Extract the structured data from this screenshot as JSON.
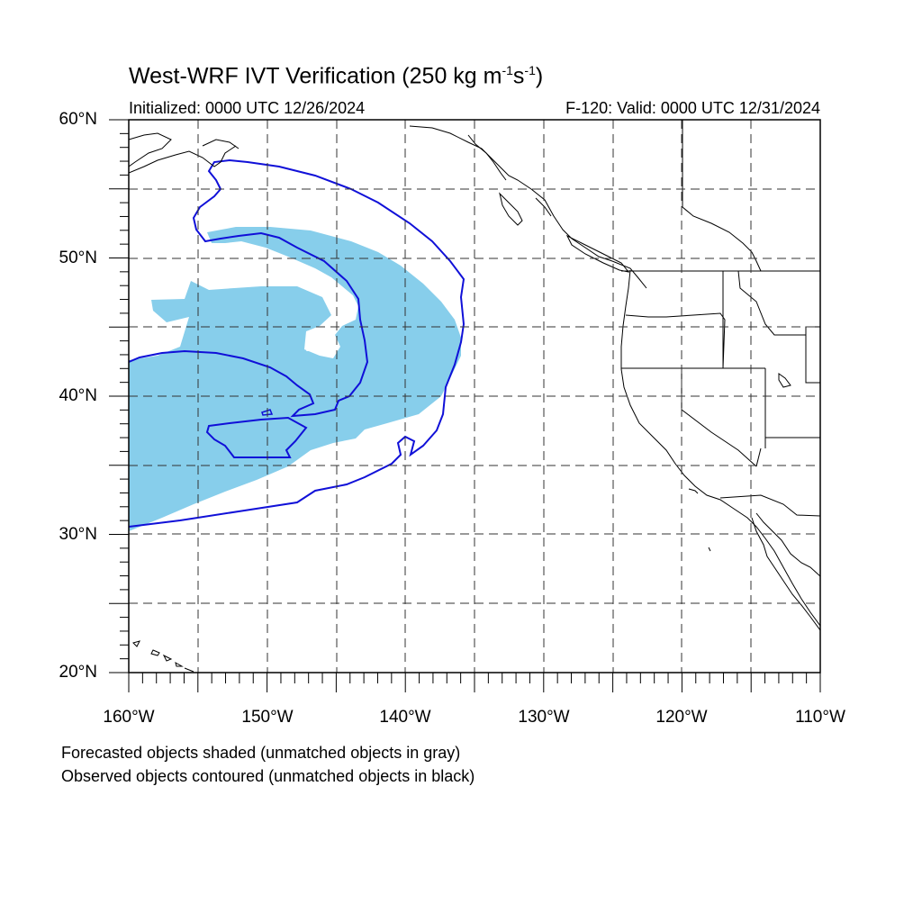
{
  "title": {
    "main": "West-WRF IVT Verification (250 kg m",
    "exp1": "-1",
    "mid": "s",
    "exp2": "-1",
    "close": ")"
  },
  "subtitle": {
    "initialized": "Initialized: 0000 UTC 12/26/2024",
    "valid": "F-120: Valid: 0000 UTC 12/31/2024"
  },
  "axes": {
    "lat_labels": [
      "60°N",
      "50°N",
      "40°N",
      "30°N",
      "20°N"
    ],
    "lon_labels": [
      "160°W",
      "150°W",
      "140°W",
      "130°W",
      "120°W",
      "110°W"
    ],
    "lat_range": [
      20,
      60
    ],
    "lon_range": [
      -160,
      -110
    ],
    "grid": true,
    "grid_step_deg": 5
  },
  "legend": {
    "line1": "Forecasted objects shaded (unmatched objects in gray)",
    "line2": "Observed objects contoured (unmatched objects in black)"
  },
  "colors": {
    "forecast_fill": "#87ceeb",
    "observed_contour": "#1010d8",
    "coastline": "#000000",
    "grid": "#333333"
  },
  "objects": {
    "forecast_object_count": 1,
    "observed_object_count": 1
  }
}
